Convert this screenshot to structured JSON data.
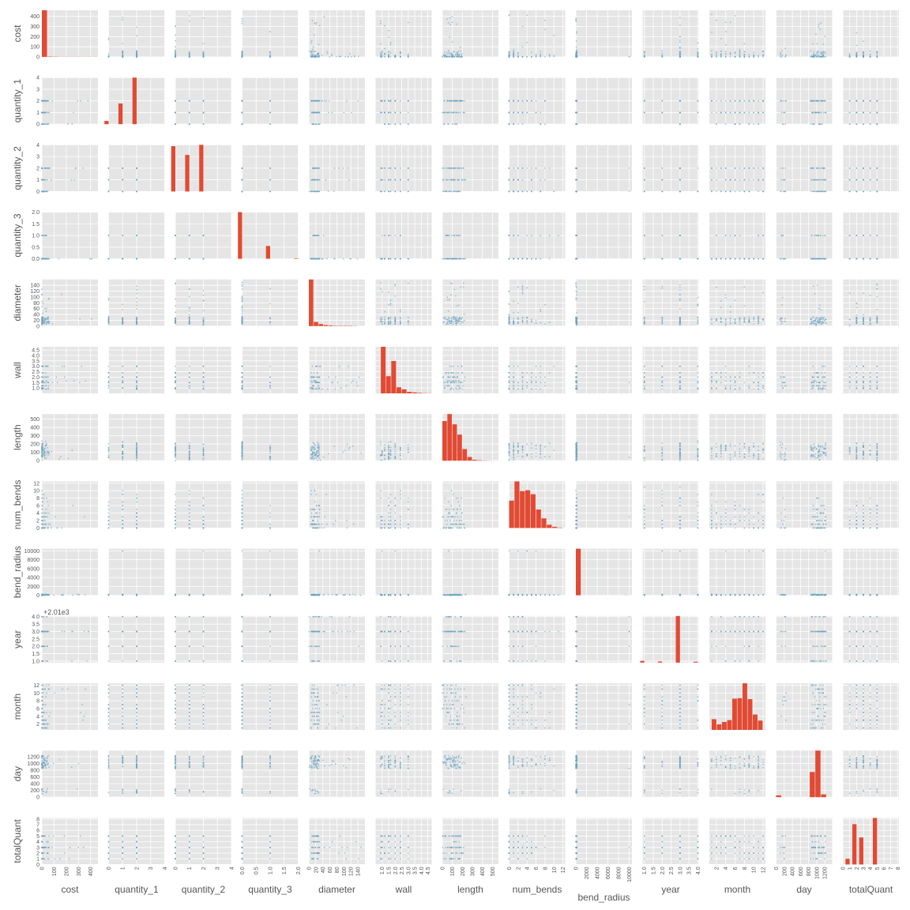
{
  "chart_data": {
    "type": "scatter",
    "variables": [
      "cost",
      "quantity_1",
      "quantity_2",
      "quantity_3",
      "diameter",
      "wall",
      "length",
      "num_bends",
      "bend_radius",
      "year",
      "month",
      "day",
      "totalQuant"
    ],
    "year_offset": "+2.01e3",
    "ranges": {
      "cost": [
        0,
        460
      ],
      "quantity_1": [
        0,
        4
      ],
      "quantity_2": [
        0,
        4
      ],
      "quantity_3": [
        0,
        2
      ],
      "diameter": [
        0,
        160
      ],
      "wall": [
        0.5,
        4.8
      ],
      "length": [
        0,
        560
      ],
      "num_bends": [
        0,
        12.5
      ],
      "bend_radius": [
        0,
        10500
      ],
      "year": [
        0.9,
        4.05
      ],
      "month": [
        0.5,
        12.5
      ],
      "day": [
        0,
        1380
      ],
      "totalQuant": [
        0,
        8.2
      ]
    },
    "ticks": {
      "cost": {
        "values": [
          0,
          100,
          200,
          300,
          400
        ],
        "labels": [
          "0",
          "100",
          "200",
          "300",
          "400"
        ]
      },
      "quantity_1": {
        "values": [
          0,
          1,
          2,
          3,
          4
        ],
        "labels": [
          "0",
          "1",
          "2",
          "3",
          "4"
        ]
      },
      "quantity_2": {
        "values": [
          0,
          1,
          2,
          3,
          4
        ],
        "labels": [
          "0",
          "1",
          "2",
          "3",
          "4"
        ]
      },
      "quantity_3": {
        "values": [
          0,
          0.5,
          1,
          1.5,
          2
        ],
        "labels": [
          "0.0",
          "0.5",
          "1.0",
          "1.5",
          "2.0"
        ]
      },
      "diameter": {
        "values": [
          0,
          20,
          40,
          60,
          80,
          100,
          120,
          140
        ],
        "labels": [
          "0",
          "20",
          "40",
          "60",
          "80",
          "100",
          "120",
          "140"
        ]
      },
      "wall": {
        "values": [
          1,
          1.5,
          2,
          2.5,
          3,
          3.5,
          4,
          4.5
        ],
        "labels": [
          "1.0",
          "1.5",
          "2.0",
          "2.5",
          "3.0",
          "3.5",
          "4.0",
          "4.5"
        ]
      },
      "length": {
        "values": [
          0,
          100,
          200,
          300,
          400,
          500
        ],
        "labels": [
          "0",
          "100",
          "200",
          "300",
          "400",
          "500"
        ]
      },
      "num_bends": {
        "values": [
          0,
          2,
          4,
          6,
          8,
          10,
          12
        ],
        "labels": [
          "0",
          "2",
          "4",
          "6",
          "8",
          "10",
          "12"
        ]
      },
      "bend_radius": {
        "values": [
          0,
          2000,
          4000,
          6000,
          8000,
          10000
        ],
        "labels": [
          "0",
          "2000",
          "4000",
          "6000",
          "8000",
          "10000"
        ]
      },
      "year": {
        "values": [
          1,
          1.5,
          2,
          2.5,
          3,
          3.5,
          4
        ],
        "labels": [
          "1.0",
          "1.5",
          "2.0",
          "2.5",
          "3.0",
          "3.5",
          "4.0"
        ]
      },
      "month": {
        "values": [
          2,
          4,
          6,
          8,
          10,
          12
        ],
        "labels": [
          "2",
          "4",
          "6",
          "8",
          "10",
          "12"
        ]
      },
      "day": {
        "values": [
          0,
          200,
          400,
          600,
          800,
          1000,
          1200
        ],
        "labels": [
          "0",
          "200",
          "400",
          "600",
          "800",
          "1000",
          "1200"
        ]
      },
      "totalQuant": {
        "values": [
          0,
          1,
          2,
          3,
          4,
          5,
          6,
          7,
          8
        ],
        "labels": [
          "0",
          "1",
          "2",
          "3",
          "4",
          "5",
          "6",
          "7",
          "8"
        ]
      }
    },
    "histograms": {
      "cost": {
        "bin_edges": [
          0,
          46,
          92,
          138,
          184,
          230,
          276,
          322,
          368,
          414,
          460
        ],
        "counts": [
          400,
          3,
          2,
          1,
          1,
          1,
          1,
          1,
          1,
          1
        ]
      },
      "quantity_1": {
        "bins": [
          0,
          1,
          2
        ],
        "counts": [
          0.25,
          1.6,
          3.6
        ]
      },
      "quantity_2": {
        "bins": [
          0,
          1,
          2
        ],
        "counts": [
          3.6,
          2.9,
          3.7
        ]
      },
      "quantity_3": {
        "bins": [
          0,
          1,
          2
        ],
        "counts": [
          2.0,
          0.55,
          0.02
        ]
      },
      "diameter": {
        "bin_edges": [
          0,
          14,
          28,
          42,
          56,
          70,
          84,
          98,
          112,
          126,
          140
        ],
        "counts": [
          135,
          12,
          6,
          3,
          2,
          1,
          1,
          1,
          1,
          0.5
        ]
      },
      "wall": {
        "bin_edges": [
          0.9,
          1.3,
          1.7,
          2.1,
          2.5,
          2.9,
          3.3,
          3.7,
          4.1,
          4.5,
          4.8
        ],
        "counts": [
          4.6,
          1.7,
          3.2,
          0.6,
          0.4,
          0.15,
          0.1,
          0.05,
          0.02,
          0.01
        ]
      },
      "length": {
        "bin_edges": [
          0,
          50,
          100,
          150,
          200,
          250,
          300,
          350,
          400,
          450,
          500
        ],
        "counts": [
          8.5,
          10,
          7.8,
          5.6,
          2.5,
          0.8,
          0.2,
          0.1,
          0.05,
          0.02
        ]
      },
      "num_bends": {
        "bin_edges": [
          0,
          1.2,
          2.4,
          3.6,
          4.8,
          6,
          7.2,
          8.4,
          9.6,
          10.8,
          12
        ],
        "counts": [
          3.4,
          5.8,
          4.6,
          4.7,
          4.2,
          2.3,
          1.2,
          0.4,
          0.15,
          0.05
        ]
      },
      "bend_radius": {
        "bin_edges": [
          0,
          1000,
          2000,
          3000,
          4000,
          5000,
          6000,
          7000,
          8000,
          9000,
          10000
        ],
        "counts": [
          8800,
          0,
          0,
          0,
          0,
          0,
          0,
          0,
          0,
          20
        ]
      },
      "year": {
        "bins": [
          1,
          2,
          3,
          4
        ],
        "counts": [
          0.15,
          0.1,
          4.0,
          0.08
        ]
      },
      "month": {
        "bin_edges": [
          1,
          2.1,
          3.2,
          4.3,
          5.4,
          6.5,
          7.6,
          8.7,
          9.8,
          10.9,
          12
        ],
        "counts": [
          2.3,
          1.2,
          1.7,
          2.1,
          6.7,
          6.8,
          10,
          6.6,
          3.3,
          2.0
        ]
      },
      "day": {
        "bin_edges": [
          0,
          138,
          276,
          414,
          552,
          690,
          828,
          966,
          1104,
          1242,
          1380
        ],
        "counts": [
          0.4,
          0,
          0,
          0,
          0,
          0,
          5.4,
          10,
          0.6,
          0
        ]
      },
      "totalQuant": {
        "bins": [
          1,
          2,
          3,
          4,
          5
        ],
        "counts": [
          1.0,
          7.0,
          4.7,
          0,
          8.1
        ]
      }
    },
    "point_color": "#6ba3c0",
    "hist_color": "#e24a33",
    "panel_bg": "#e5e5e5",
    "grid": true
  }
}
